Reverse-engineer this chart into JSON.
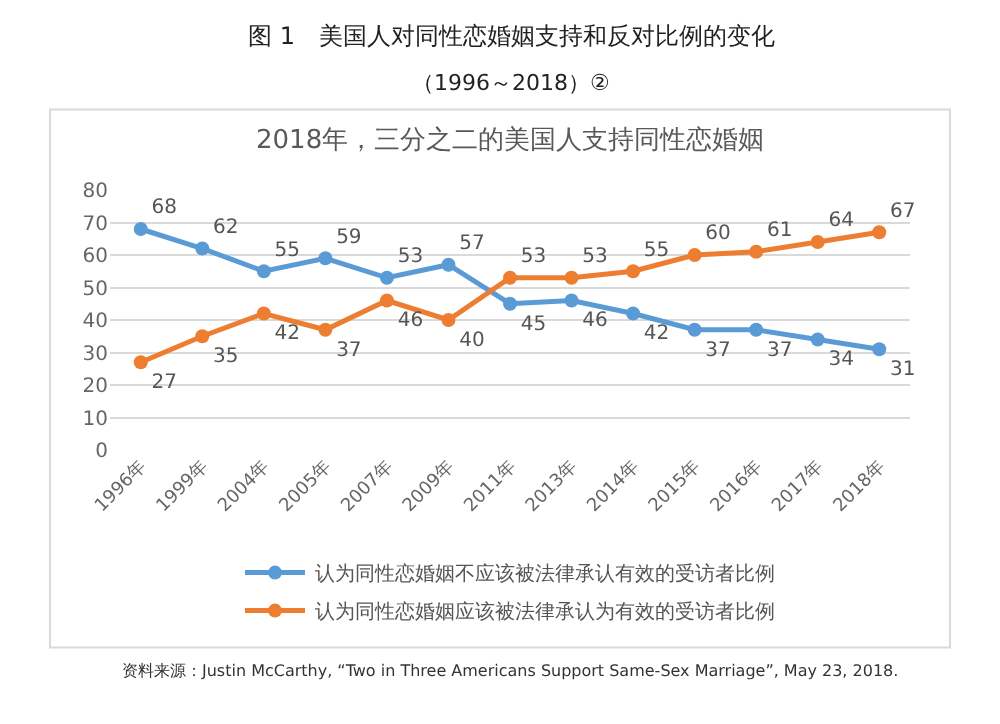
{
  "chart_data": {
    "type": "line",
    "title": "图 1　美国人对同性恋婚姻支持和反对比例的变化",
    "subtitle": "（1996～2018）②",
    "categories": [
      "1996年",
      "1999年",
      "2004年",
      "2005年",
      "2007年",
      "2009年",
      "2011年",
      "2013年",
      "2014年",
      "2015年",
      "2016年",
      "2017年",
      "2018年"
    ],
    "series": [
      {
        "name": "认为同性恋婚姻不应该被法律承认有效的受访者比例",
        "color": "#5b9bd5",
        "values": [
          68,
          62,
          55,
          59,
          53,
          57,
          45,
          46,
          42,
          37,
          37,
          34,
          31
        ]
      },
      {
        "name": "认为同性恋婚姻应该被法律承认为有效的受访者比例",
        "color": "#ed7d31",
        "values": [
          27,
          35,
          42,
          37,
          46,
          40,
          53,
          53,
          55,
          60,
          61,
          64,
          67
        ]
      }
    ],
    "ylim": [
      0,
      80
    ],
    "yticks": [
      0,
      10,
      20,
      30,
      40,
      50,
      60,
      70,
      80
    ],
    "grid": "y",
    "legend": "bottom",
    "marker": "circle",
    "line_style": "solid",
    "data_labels": true,
    "annotations": [
      "2018年，三分之二的美国人支持同性恋婚姻",
      "资料来源：Justin McCarthy, “Two in Three Americans Support Same-Sex Marriage”, May 23, 2018."
    ]
  }
}
